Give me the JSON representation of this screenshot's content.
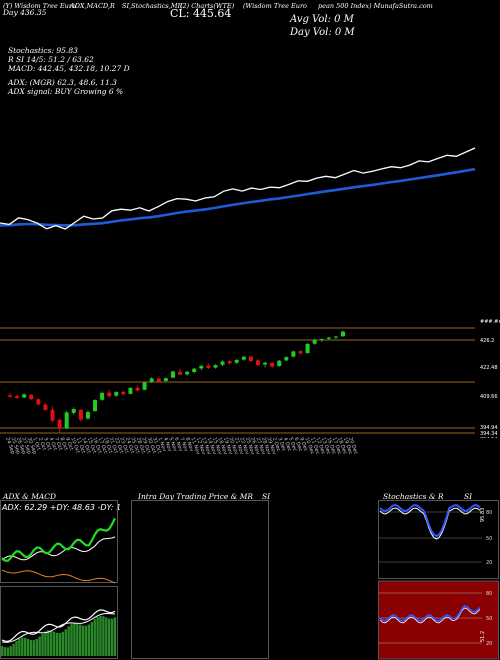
{
  "header": {
    "left": "(Y) Wisdom Tree Euro",
    "mid1": "ADX,MACD,R",
    "mid2": "SI,Stochastics,MR",
    "mid3": "(2) Charts(WTE)",
    "right1": "(Wisdom Tree Euro",
    "right2": "pean 500 Index) MunafaSutra.com"
  },
  "info": {
    "day_label": "Day",
    "day_value": "436.35",
    "cl_label": "CL:",
    "cl_value": "445.64",
    "avg_vol": "Avg Vol: 0  M",
    "day_vol": "Day Vol: 0  M",
    "stochastics": "Stochastics: 95.83",
    "rsi": "R            SI 14/5: 51.2  / 63.62",
    "macd": "MACD: 442.45, 432.18, 10.27 D",
    "adx": "ADX:                    (MGR) 62.3, 48.6, 11.3",
    "adx_signal": "ADX  signal:                     BUY Growing 6 %"
  },
  "candle_panel": {
    "price_labels": [
      "###.##",
      "426.2",
      "422.48",
      "409.66",
      "394.94",
      "394.34",
      "394.54"
    ],
    "dates": [
      "24 Sep",
      "25 Sep",
      "26 Sep",
      "27 Sep",
      "30 Sep",
      "1 Oct",
      "2 Oct",
      "3 Oct",
      "4 Oct",
      "7 Oct",
      "8 Oct",
      "9 Oct",
      "10 Oct",
      "11 Oct",
      "14 Oct",
      "15 Oct",
      "16 Oct",
      "17 Oct",
      "18 Oct",
      "21 Oct",
      "22 Oct",
      "23 Oct",
      "24 Oct",
      "25 Oct",
      "28 Oct",
      "29 Oct",
      "30 Oct",
      "31 Oct",
      "1 Nov",
      "4 Nov",
      "5 Nov",
      "6 Nov",
      "7 Nov",
      "8 Nov",
      "11 Nov",
      "12 Nov",
      "13 Nov",
      "14 Nov",
      "15 Nov",
      "18 Nov",
      "19 Nov",
      "20 Nov",
      "21 Nov",
      "22 Nov",
      "25 Nov",
      "26 Nov",
      "27 Nov",
      "28 Nov",
      "29 Nov",
      "2 Dec",
      "3 Dec",
      "4 Dec",
      "5 Dec",
      "6 Dec",
      "9 Dec",
      "10 Dec",
      "11 Dec",
      "12 Dec",
      "13 Dec",
      "16 Dec",
      "17 Dec",
      "18 Dec",
      "19 Dec",
      "20 Dec"
    ]
  },
  "panels": {
    "adx_title": "ADX  & MACD",
    "adx_value": "ADX: 62.29 +DY: 48.63 -DY: 11.3",
    "mr_title": "Intra  Day Trading Price  & MR",
    "mr_si": "SI",
    "stoch_title": "Stochastics & R",
    "stoch_si": "SI",
    "stoch_levels": [
      "80",
      "50",
      "20"
    ],
    "stoch_readout": "95.83",
    "rsi_levels": [
      "80",
      "50",
      "20"
    ],
    "rsi_readout": "51.2"
  },
  "chart_data": {
    "type": "line",
    "title": "Wisdom Tree European 500 Index",
    "series": [
      {
        "name": "close",
        "values": [
          408.2,
          407.5,
          410.8,
          409.9,
          408.1,
          405.3,
          406.9,
          405.2,
          408.4,
          411.6,
          410.2,
          410.7,
          414.3,
          415.1,
          414.6,
          415.8,
          414.2,
          416.4,
          418.9,
          420.4,
          420.1,
          419.2,
          420.7,
          421.3,
          424.0,
          425.2,
          424.1,
          425.6,
          424.9,
          426.1,
          425.8,
          427.4,
          429.2,
          429.0,
          430.6,
          431.5,
          430.8,
          432.6,
          434.4,
          433.1,
          434.0,
          435.2,
          436.3,
          435.8,
          437.1,
          439.2,
          438.7,
          440.4,
          442.0,
          441.5,
          443.6,
          445.64
        ]
      },
      {
        "name": "ema",
        "values": [
          407.0,
          407.1,
          407.5,
          407.7,
          407.6,
          407.3,
          407.2,
          407.0,
          407.1,
          407.5,
          407.8,
          408.1,
          408.8,
          409.5,
          410.0,
          410.6,
          411.0,
          411.6,
          412.4,
          413.2,
          413.9,
          414.4,
          415.0,
          415.7,
          416.5,
          417.3,
          418.0,
          418.7,
          419.3,
          420.0,
          420.5,
          421.2,
          421.9,
          422.6,
          423.3,
          424.0,
          424.6,
          425.3,
          426.0,
          426.6,
          427.2,
          427.9,
          428.6,
          429.2,
          429.9,
          430.6,
          431.3,
          432.0,
          432.8,
          433.5,
          434.3,
          435.1
        ]
      }
    ],
    "candles": [
      {
        "o": 409.5,
        "h": 410.4,
        "l": 408.3,
        "c": 408.9
      },
      {
        "o": 409.2,
        "h": 409.8,
        "l": 408.0,
        "c": 408.4
      },
      {
        "o": 408.6,
        "h": 410.2,
        "l": 408.3,
        "c": 409.8
      },
      {
        "o": 409.6,
        "h": 410.0,
        "l": 407.6,
        "c": 407.9
      },
      {
        "o": 407.9,
        "h": 408.4,
        "l": 405.5,
        "c": 405.9
      },
      {
        "o": 405.8,
        "h": 406.5,
        "l": 403.4,
        "c": 403.7
      },
      {
        "o": 403.8,
        "h": 405.2,
        "l": 398.8,
        "c": 399.6
      },
      {
        "o": 399.9,
        "h": 400.6,
        "l": 395.0,
        "c": 396.4
      },
      {
        "o": 396.6,
        "h": 403.5,
        "l": 396.1,
        "c": 402.8
      },
      {
        "o": 402.6,
        "h": 404.8,
        "l": 401.9,
        "c": 404.1
      },
      {
        "o": 403.8,
        "h": 404.1,
        "l": 399.2,
        "c": 400.0
      },
      {
        "o": 400.4,
        "h": 403.6,
        "l": 400.0,
        "c": 402.9
      },
      {
        "o": 403.3,
        "h": 407.9,
        "l": 403.1,
        "c": 407.6
      },
      {
        "o": 407.7,
        "h": 410.9,
        "l": 407.2,
        "c": 410.4
      },
      {
        "o": 410.5,
        "h": 411.8,
        "l": 408.5,
        "c": 409.1
      },
      {
        "o": 409.3,
        "h": 411.0,
        "l": 408.7,
        "c": 410.7
      },
      {
        "o": 410.8,
        "h": 411.3,
        "l": 409.5,
        "c": 409.9
      },
      {
        "o": 410.0,
        "h": 412.6,
        "l": 409.8,
        "c": 412.3
      },
      {
        "o": 412.4,
        "h": 413.5,
        "l": 410.9,
        "c": 411.3
      },
      {
        "o": 411.6,
        "h": 414.7,
        "l": 411.4,
        "c": 414.4
      },
      {
        "o": 414.6,
        "h": 416.5,
        "l": 414.2,
        "c": 416.0
      },
      {
        "o": 416.0,
        "h": 416.8,
        "l": 414.5,
        "c": 414.8
      },
      {
        "o": 415.0,
        "h": 416.4,
        "l": 414.7,
        "c": 416.1
      },
      {
        "o": 416.3,
        "h": 419.0,
        "l": 416.0,
        "c": 418.7
      },
      {
        "o": 418.6,
        "h": 419.8,
        "l": 417.2,
        "c": 417.5
      },
      {
        "o": 417.6,
        "h": 418.9,
        "l": 417.1,
        "c": 418.6
      },
      {
        "o": 418.5,
        "h": 420.1,
        "l": 418.0,
        "c": 419.8
      },
      {
        "o": 419.9,
        "h": 421.3,
        "l": 419.2,
        "c": 420.9
      },
      {
        "o": 421.0,
        "h": 421.9,
        "l": 419.7,
        "c": 420.1
      },
      {
        "o": 420.2,
        "h": 421.5,
        "l": 419.8,
        "c": 421.2
      },
      {
        "o": 421.3,
        "h": 423.0,
        "l": 420.8,
        "c": 422.6
      },
      {
        "o": 422.7,
        "h": 423.4,
        "l": 421.4,
        "c": 421.9
      },
      {
        "o": 422.1,
        "h": 423.6,
        "l": 421.6,
        "c": 423.2
      },
      {
        "o": 423.3,
        "h": 424.8,
        "l": 422.9,
        "c": 424.4
      },
      {
        "o": 424.5,
        "h": 424.9,
        "l": 422.4,
        "c": 422.8
      },
      {
        "o": 423.0,
        "h": 423.6,
        "l": 420.6,
        "c": 421.2
      },
      {
        "o": 421.4,
        "h": 422.5,
        "l": 420.3,
        "c": 422.1
      },
      {
        "o": 422.0,
        "h": 422.4,
        "l": 420.1,
        "c": 420.6
      },
      {
        "o": 420.8,
        "h": 423.2,
        "l": 420.5,
        "c": 422.9
      },
      {
        "o": 423.0,
        "h": 424.6,
        "l": 422.7,
        "c": 424.3
      },
      {
        "o": 424.5,
        "h": 426.8,
        "l": 424.2,
        "c": 426.5
      },
      {
        "o": 426.6,
        "h": 427.0,
        "l": 425.3,
        "c": 425.7
      },
      {
        "o": 425.9,
        "h": 429.8,
        "l": 425.6,
        "c": 429.4
      },
      {
        "o": 429.5,
        "h": 431.4,
        "l": 429.1,
        "c": 431.0
      },
      {
        "o": 431.0,
        "h": 431.6,
        "l": 430.2,
        "c": 431.3
      },
      {
        "o": 431.4,
        "h": 432.2,
        "l": 431.0,
        "c": 431.9
      },
      {
        "o": 432.0,
        "h": 432.6,
        "l": 431.3,
        "c": 432.3
      },
      {
        "o": 432.4,
        "h": 434.6,
        "l": 432.1,
        "c": 434.2
      }
    ],
    "adx": {
      "adx": 62.29,
      "plus_di": 48.63,
      "minus_di": 11.3
    },
    "stochastics": 95.83,
    "rsi": 51.2,
    "macd": {
      "macd": 442.45,
      "signal": 432.18,
      "histogram": 10.27
    }
  },
  "colors": {
    "price_line": "#ffffff",
    "ema_line": "#1e5bd6",
    "up_candle": "#22cc22",
    "down_candle": "#dd1111",
    "level_line": "#a0621a",
    "rsi_bg": "#8b0000",
    "stoch_line": "#3355ff"
  }
}
